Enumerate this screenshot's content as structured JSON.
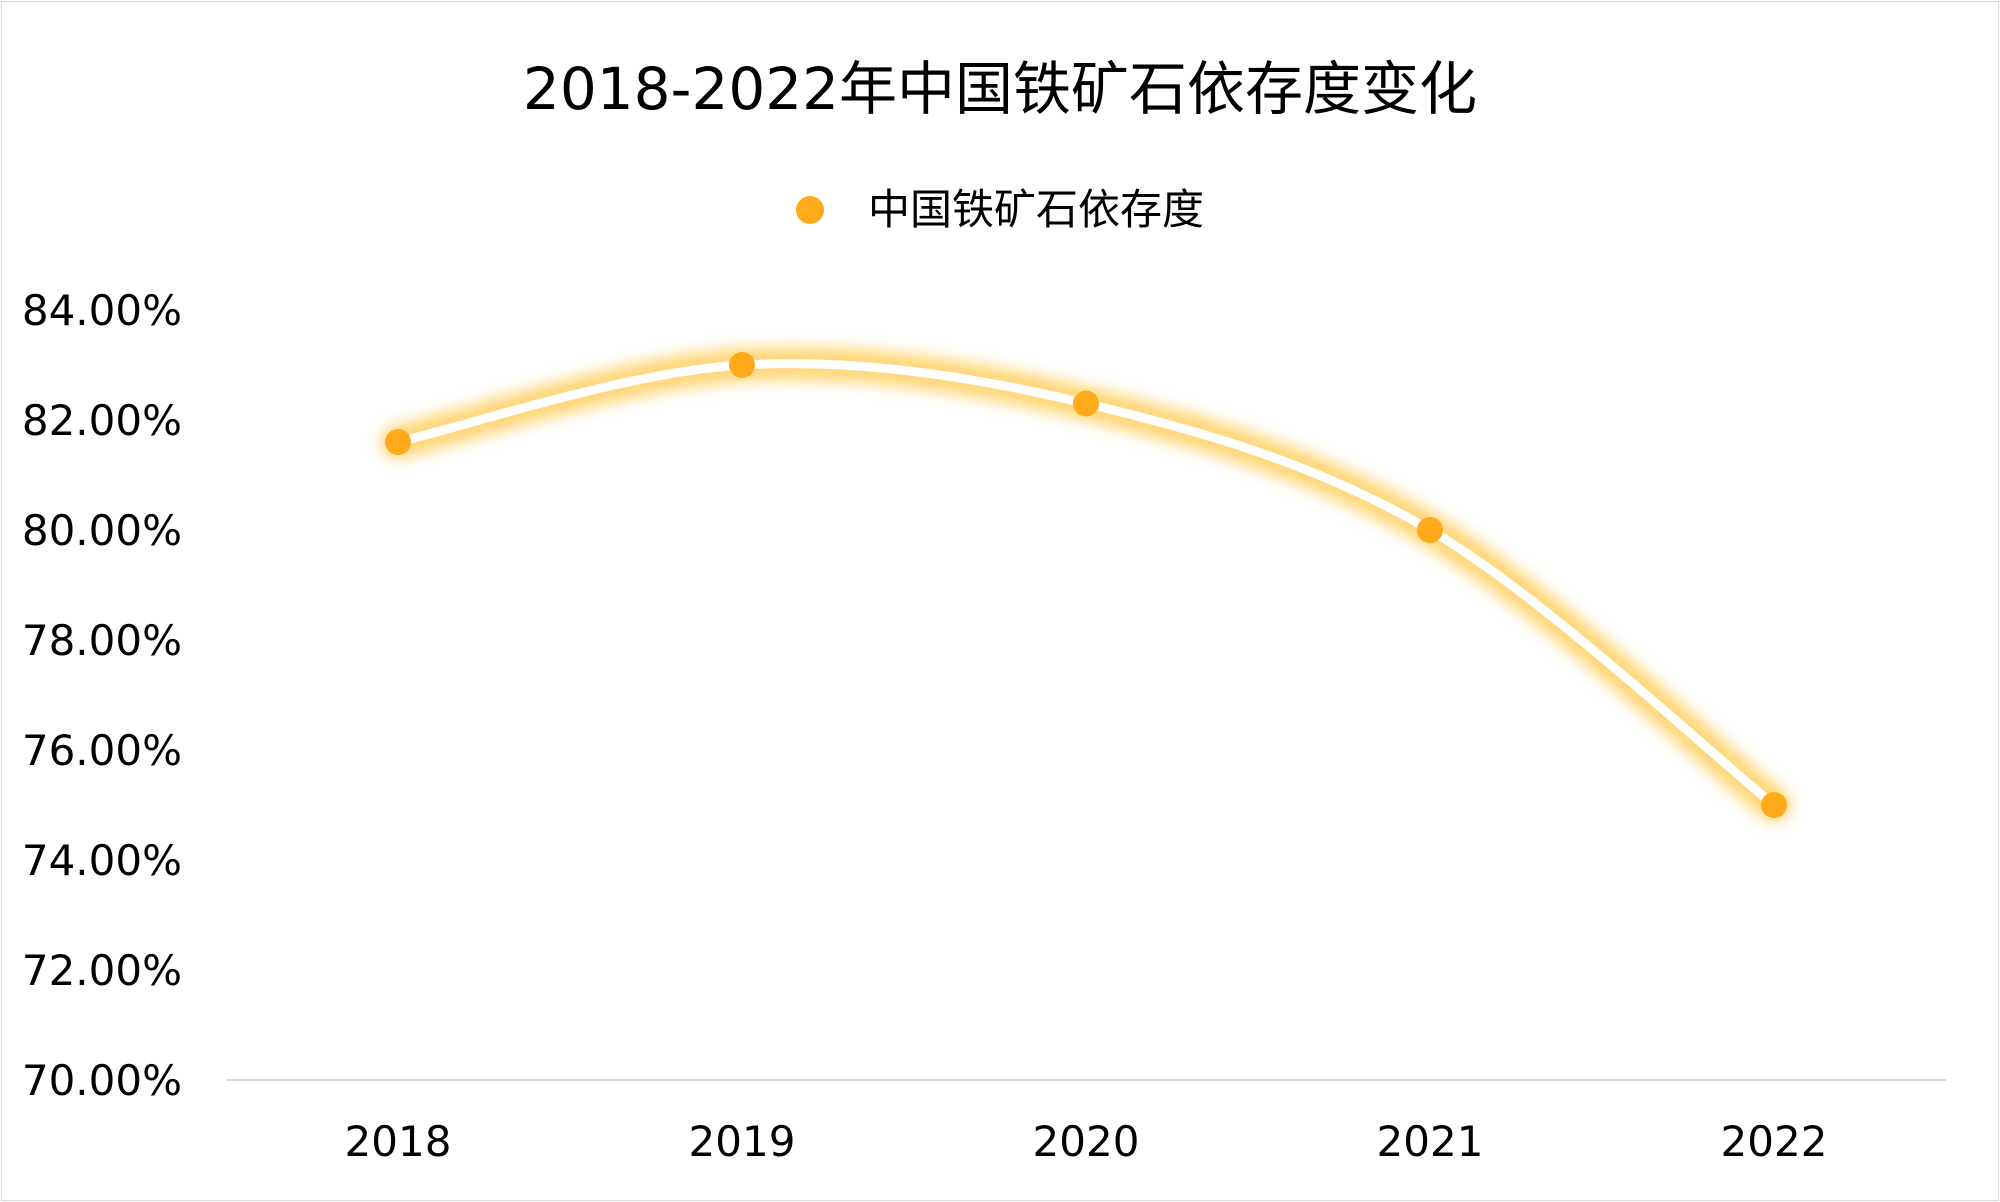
{
  "chart_data": {
    "type": "line",
    "title": "2018-2022年中国铁矿石依存度变化",
    "categories": [
      "2018",
      "2019",
      "2020",
      "2021",
      "2022"
    ],
    "series": [
      {
        "name": "中国铁矿石依存度",
        "values": [
          81.6,
          83.0,
          82.3,
          80.0,
          75.0
        ]
      }
    ],
    "y_ticks": [
      "70.00%",
      "72.00%",
      "74.00%",
      "76.00%",
      "78.00%",
      "80.00%",
      "82.00%",
      "84.00%"
    ],
    "ylim": [
      70,
      84
    ],
    "smooth": true,
    "grid": false,
    "legend_position": "top-center",
    "colors": {
      "series": "#FFAA1A",
      "glow": "#FFC94D",
      "line": "#FFFFFF",
      "baseline": "#D9D9D9"
    }
  }
}
